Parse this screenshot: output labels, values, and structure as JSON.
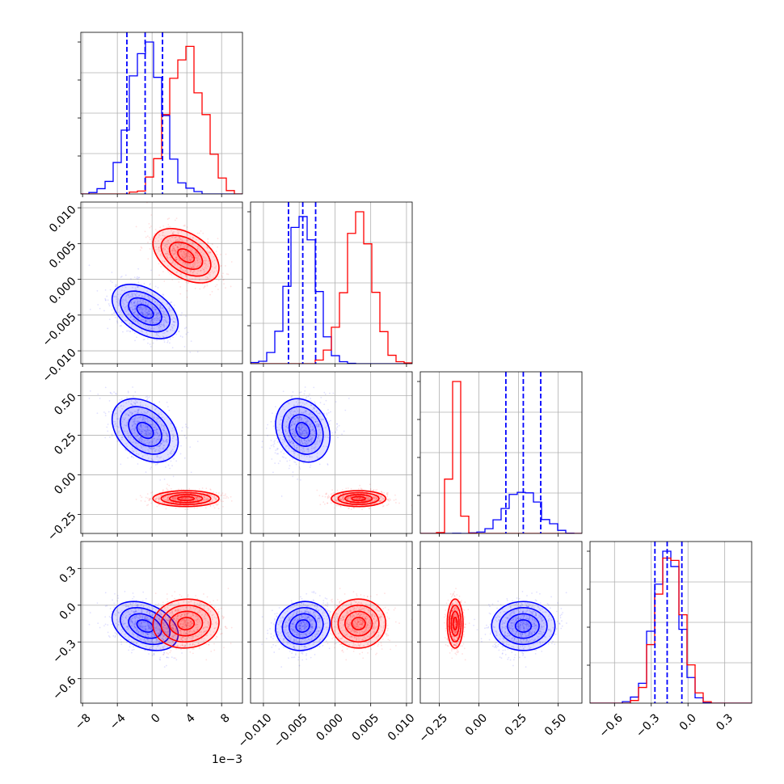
{
  "colors": {
    "blue": "#0000ff",
    "red": "#ff0000",
    "grid": "#b0b0b0"
  },
  "chart_data": {
    "type": "corner",
    "grid": true,
    "series": [
      {
        "color": "#0000ff",
        "params": [
          {
            "center": -0.0008,
            "sd": 0.0019,
            "q": [
              -0.0029,
              -0.0008,
              0.0012
            ]
          },
          {
            "center": -0.0045,
            "sd": 0.0019,
            "q": [
              -0.0065,
              -0.0045,
              -0.0027
            ]
          },
          {
            "center": 0.28,
            "sd": 0.1,
            "q": [
              0.17,
              0.28,
              0.39
            ]
          },
          {
            "center": -0.17,
            "sd": 0.1,
            "q": [
              -0.27,
              -0.17,
              -0.05
            ]
          }
        ]
      },
      {
        "color": "#ff0000",
        "params": [
          {
            "center": 0.0039,
            "sd": 0.0019
          },
          {
            "center": 0.0033,
            "sd": 0.0019
          },
          {
            "center": -0.15,
            "sd": 0.025
          },
          {
            "center": -0.15,
            "sd": 0.1
          }
        ]
      }
    ],
    "axes": [
      {
        "range": [
          -0.0082,
          0.0104
        ],
        "ticks": [
          -0.008,
          -0.004,
          0.0,
          0.004,
          0.008
        ],
        "tick_labels": [
          "−8",
          "−4",
          "0",
          "4",
          "8"
        ],
        "offset_text": "1e−3"
      },
      {
        "range": [
          -0.0118,
          0.0108
        ],
        "ticks": [
          -0.01,
          -0.005,
          0.0,
          0.005,
          0.01
        ],
        "tick_labels": [
          "−0.010",
          "−0.005",
          "0.000",
          "0.005",
          "0.010"
        ]
      },
      {
        "range": [
          -0.37,
          0.65
        ],
        "ticks": [
          -0.25,
          0.0,
          0.25,
          0.5
        ],
        "tick_labels": [
          "−0.25",
          "0.00",
          "0.25",
          "0.50"
        ]
      },
      {
        "range": [
          -0.8,
          0.52
        ],
        "ticks": [
          -0.6,
          -0.3,
          0.0,
          0.3
        ],
        "tick_labels": [
          "−0.6",
          "−0.3",
          "0.0",
          "0.3"
        ]
      }
    ]
  }
}
